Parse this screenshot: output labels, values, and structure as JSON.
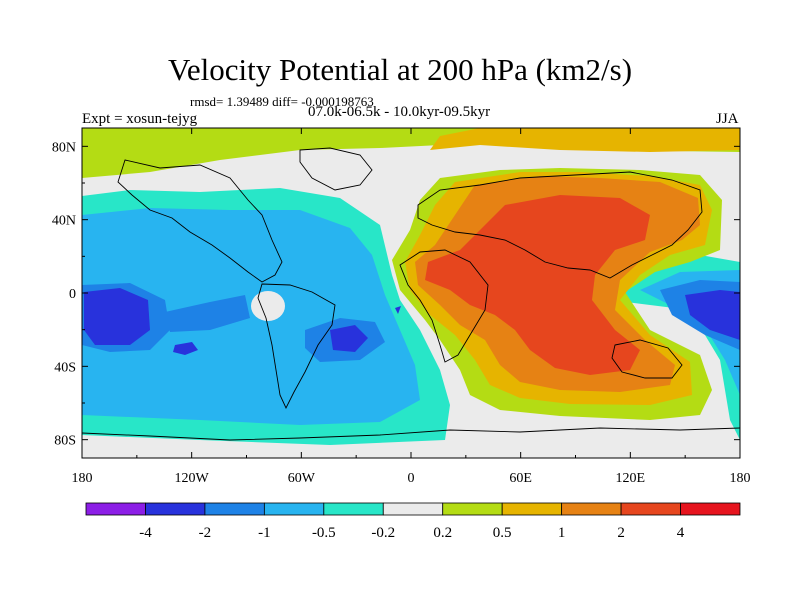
{
  "title": "Velocity Potential at 200 hPa (km2/s)",
  "stats_line": "rmsd= 1.39489  diff= -0.000198763",
  "experiment": "Expt = xosun-tejyg",
  "period": "07.0k-06.5k - 10.0kyr-09.5kyr",
  "season": "JJA",
  "map": {
    "projection": "cylindrical-equidistant",
    "lon_range": [
      -180,
      180
    ],
    "lat_range": [
      -90,
      90
    ],
    "lon_ticks": [
      {
        "value": -180,
        "label": "180"
      },
      {
        "value": -120,
        "label": "120W"
      },
      {
        "value": -60,
        "label": "60W"
      },
      {
        "value": 0,
        "label": "0"
      },
      {
        "value": 60,
        "label": "60E"
      },
      {
        "value": 120,
        "label": "120E"
      },
      {
        "value": 180,
        "label": "180"
      }
    ],
    "lat_ticks": [
      {
        "value": 80,
        "label": "80N"
      },
      {
        "value": 40,
        "label": "40N"
      },
      {
        "value": 0,
        "label": "0"
      },
      {
        "value": -40,
        "label": "40S"
      },
      {
        "value": -80,
        "label": "80S"
      }
    ]
  },
  "colorbar": {
    "boundary_labels": [
      "-4",
      "-2",
      "-1",
      "-0.5",
      "-0.2",
      "0.2",
      "0.5",
      "1",
      "2",
      "4"
    ],
    "colors": [
      "#8c1ee6",
      "#2832dc",
      "#1e82e6",
      "#28b4f0",
      "#28e6c8",
      "#ebebeb",
      "#b4dc14",
      "#e6b400",
      "#e68214",
      "#e6461e",
      "#e6141e"
    ]
  },
  "colors": {
    "background": "#ffffff",
    "frame": "#000000",
    "coast": "#000000"
  }
}
